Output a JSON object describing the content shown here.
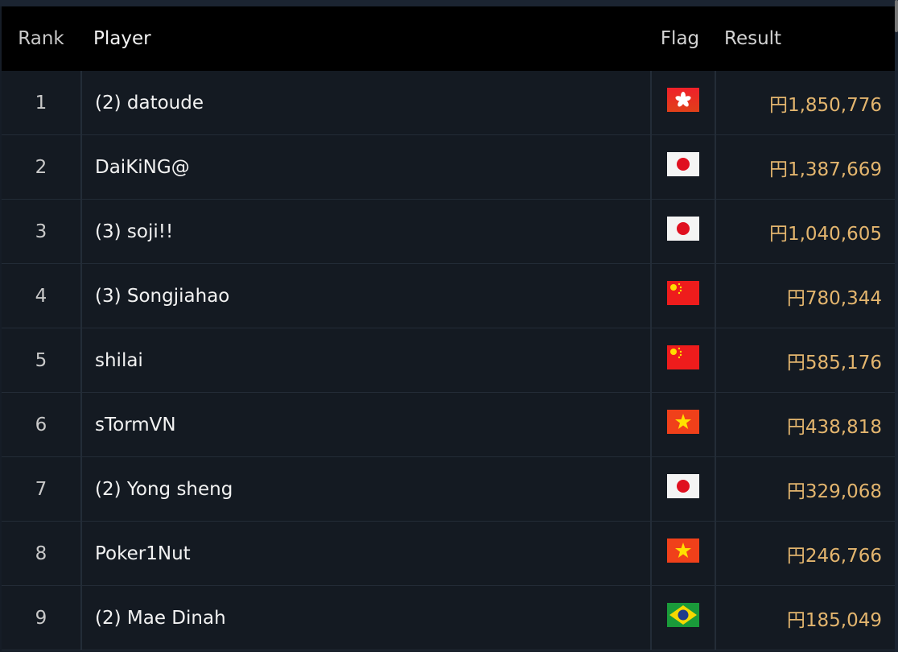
{
  "header": {
    "rank": "Rank",
    "player": "Player",
    "flag": "Flag",
    "result": "Result"
  },
  "rows": [
    {
      "rank": "1",
      "player": "(2) datoude",
      "flag": "hong-kong",
      "result": "円1,850,776"
    },
    {
      "rank": "2",
      "player": "DaiKiNG@",
      "flag": "japan",
      "result": "円1,387,669"
    },
    {
      "rank": "3",
      "player": "(3) soji!!",
      "flag": "japan",
      "result": "円1,040,605"
    },
    {
      "rank": "4",
      "player": "(3) Songjiahao",
      "flag": "china",
      "result": "円780,344"
    },
    {
      "rank": "5",
      "player": "shilai",
      "flag": "china",
      "result": "円585,176"
    },
    {
      "rank": "6",
      "player": "sTormVN",
      "flag": "vietnam",
      "result": "円438,818"
    },
    {
      "rank": "7",
      "player": "(2) Yong sheng",
      "flag": "japan",
      "result": "円329,068"
    },
    {
      "rank": "8",
      "player": "Poker1Nut",
      "flag": "vietnam",
      "result": "円246,766"
    },
    {
      "rank": "9",
      "player": "(2) Mae Dinah",
      "flag": "brazil",
      "result": "円185,049"
    }
  ],
  "colors": {
    "result": "#e3b56e",
    "header_bg": "#000000",
    "row_bg": "#141a22"
  }
}
